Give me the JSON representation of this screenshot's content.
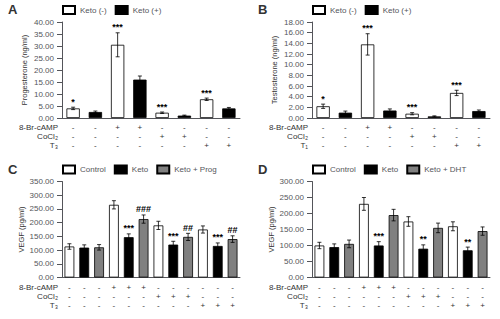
{
  "chart_data": [
    {
      "type": "bar",
      "title": "A",
      "ylabel": "Progesterone (ng/ml)",
      "categories": [
        null,
        null,
        null,
        null
      ],
      "series": [
        {
          "name": "Keto (-)",
          "color": "white",
          "values": [
            4.0,
            30.5,
            2.2,
            7.8
          ],
          "errors": [
            0.5,
            5.0,
            0.3,
            0.5
          ],
          "annotations": [
            "*",
            "***",
            "***",
            "***"
          ]
        },
        {
          "name": "Keto (+)",
          "color": "black",
          "values": [
            2.5,
            16.0,
            1.0,
            4.0
          ],
          "errors": [
            0.4,
            1.5,
            0.2,
            0.4
          ]
        }
      ],
      "ylim": [
        0,
        40.0
      ],
      "yticks": [
        {
          "value": 0,
          "label": "0.00"
        },
        {
          "value": 5,
          "label": "5.00"
        },
        {
          "value": 10,
          "label": "10.00"
        },
        {
          "value": 15,
          "label": "15.00"
        },
        {
          "value": 20,
          "label": "20.00"
        },
        {
          "value": 25,
          "label": "25.00"
        },
        {
          "value": 30,
          "label": "30.00"
        },
        {
          "value": 35,
          "label": "35.00"
        },
        {
          "value": 40,
          "label": "40.00"
        }
      ],
      "grid": false,
      "legend": "upper left",
      "x_label_rows": [
        {
          "label": "8-Br-cAMP",
          "labels": [
            "-",
            "-",
            "+",
            "+",
            "-",
            "-",
            "-",
            "-"
          ]
        },
        {
          "label": "CoCl₂",
          "labels": [
            "-",
            "-",
            "-",
            "-",
            "+",
            "+",
            "-",
            "-"
          ]
        },
        {
          "label": "T₃",
          "labels": [
            "-",
            "-",
            "-",
            "-",
            "-",
            "-",
            "+",
            "+"
          ]
        }
      ]
    },
    {
      "type": "bar",
      "title": "B",
      "ylabel": "Testosterone (ng/ml)",
      "categories": [
        null,
        null,
        null,
        null
      ],
      "series": [
        {
          "name": "Keto (-)",
          "color": "white",
          "values": [
            2.2,
            13.8,
            0.8,
            4.7
          ],
          "errors": [
            0.4,
            2.0,
            0.2,
            0.5
          ],
          "annotations": [
            "*",
            "***",
            "***",
            "***"
          ]
        },
        {
          "name": "Keto (+)",
          "color": "black",
          "values": [
            1.0,
            1.4,
            0.3,
            1.3
          ],
          "errors": [
            0.3,
            0.3,
            0.1,
            0.2
          ]
        }
      ],
      "ylim": [
        0,
        18.0
      ],
      "yticks": [
        {
          "value": 0,
          "label": "0.00"
        },
        {
          "value": 2,
          "label": "2.00"
        },
        {
          "value": 4,
          "label": "4.00"
        },
        {
          "value": 6,
          "label": "6.00"
        },
        {
          "value": 8,
          "label": "8.00"
        },
        {
          "value": 10,
          "label": "10.00"
        },
        {
          "value": 12,
          "label": "12.00"
        },
        {
          "value": 14,
          "label": "14.00"
        },
        {
          "value": 16,
          "label": "16.00"
        },
        {
          "value": 18,
          "label": "18.00"
        }
      ],
      "grid": false,
      "legend": "upper left",
      "x_label_rows": [
        {
          "label": "8-Br-cAMP",
          "labels": [
            "-",
            "-",
            "+",
            "+",
            "-",
            "-",
            "-",
            "-"
          ]
        },
        {
          "label": "CoCl₂",
          "labels": [
            "-",
            "-",
            "-",
            "-",
            "+",
            "+",
            "-",
            "-"
          ]
        },
        {
          "label": "T₁",
          "labels": [
            "-",
            "-",
            "-",
            "-",
            "-",
            "-",
            "+",
            "+"
          ]
        }
      ]
    },
    {
      "type": "bar",
      "title": "C",
      "ylabel": "VEGF (pg/ml)",
      "categories": [
        null,
        null,
        null,
        null
      ],
      "series": [
        {
          "name": "Control",
          "color": "white",
          "values": [
            113.0,
            265.0,
            190.0,
            175.0
          ],
          "errors": [
            10.0,
            15.0,
            15.0,
            13.0
          ]
        },
        {
          "name": "Keto",
          "color": "black",
          "values": [
            109.0,
            147.0,
            120.0,
            115.0
          ],
          "errors": [
            10.0,
            12.0,
            12.0,
            11.0
          ],
          "annotations": [
            null,
            "***",
            "***",
            "***"
          ]
        },
        {
          "name": "Keto + Prog",
          "color": "#808080",
          "values": [
            110.0,
            213.0,
            148.0,
            140.0
          ],
          "errors": [
            10.0,
            15.0,
            13.0,
            12.0
          ],
          "annotations": [
            null,
            "###",
            "##",
            "##"
          ]
        }
      ],
      "ylim": [
        0,
        350.0
      ],
      "yticks": [
        {
          "value": 0,
          "label": "0.00"
        },
        {
          "value": 50,
          "label": "50.00"
        },
        {
          "value": 100,
          "label": "100.00"
        },
        {
          "value": 150,
          "label": "150.00"
        },
        {
          "value": 200,
          "label": "200.00"
        },
        {
          "value": 250,
          "label": "250.00"
        },
        {
          "value": 300,
          "label": "300.00"
        },
        {
          "value": 350,
          "label": "350.00"
        }
      ],
      "grid": false,
      "legend": "upper left",
      "x_label_rows": [
        {
          "label": "8-Br-cAMP",
          "labels": [
            "-",
            "-",
            "-",
            "+",
            "+",
            "+",
            "-",
            "-",
            "-",
            "-",
            "-",
            "-"
          ]
        },
        {
          "label": "CoCl₂",
          "labels": [
            "-",
            "-",
            "-",
            "-",
            "-",
            "-",
            "+",
            "+",
            "+",
            "-",
            "-",
            "-"
          ]
        },
        {
          "label": "T₃",
          "labels": [
            "-",
            "-",
            "-",
            "-",
            "-",
            "-",
            "-",
            "-",
            "-",
            "+",
            "+",
            "+"
          ]
        }
      ]
    },
    {
      "type": "bar",
      "title": "D",
      "ylabel": "VEGF (pg/ml)",
      "categories": [
        null,
        null,
        null,
        null
      ],
      "series": [
        {
          "name": "Control",
          "color": "white",
          "values": [
            100.0,
            230.0,
            175.0,
            160.0
          ],
          "errors": [
            10.0,
            20.0,
            15.0,
            14.0
          ]
        },
        {
          "name": "Keto",
          "color": "black",
          "values": [
            95.0,
            100.0,
            90.0,
            85.0
          ],
          "errors": [
            10.0,
            12.0,
            12.0,
            10.0
          ],
          "annotations": [
            null,
            "***",
            "**",
            "**"
          ]
        },
        {
          "name": "Keto + DHT",
          "color": "#808080",
          "values": [
            105.0,
            195.0,
            155.0,
            145.0
          ],
          "errors": [
            12.0,
            18.0,
            15.0,
            13.0
          ]
        }
      ],
      "ylim": [
        0,
        300.0
      ],
      "yticks": [
        {
          "value": 0,
          "label": "0.00"
        },
        {
          "value": 50,
          "label": "50.00"
        },
        {
          "value": 100,
          "label": "100.00"
        },
        {
          "value": 150,
          "label": "150.00"
        },
        {
          "value": 200,
          "label": "200.00"
        },
        {
          "value": 250,
          "label": "250.00"
        },
        {
          "value": 300,
          "label": "300.00"
        }
      ],
      "grid": false,
      "legend": "upper left",
      "x_label_rows": [
        {
          "label": "8-Br-cAMP",
          "labels": [
            "-",
            "-",
            "-",
            "+",
            "+",
            "+",
            "-",
            "-",
            "-",
            "-",
            "-",
            "-"
          ]
        },
        {
          "label": "CoCl₂",
          "labels": [
            "-",
            "-",
            "-",
            "-",
            "-",
            "-",
            "+",
            "+",
            "+",
            "-",
            "-",
            "-"
          ]
        },
        {
          "label": "T₃",
          "labels": [
            "-",
            "-",
            "-",
            "-",
            "-",
            "-",
            "-",
            "-",
            "-",
            "+",
            "+",
            "+"
          ]
        }
      ]
    }
  ]
}
